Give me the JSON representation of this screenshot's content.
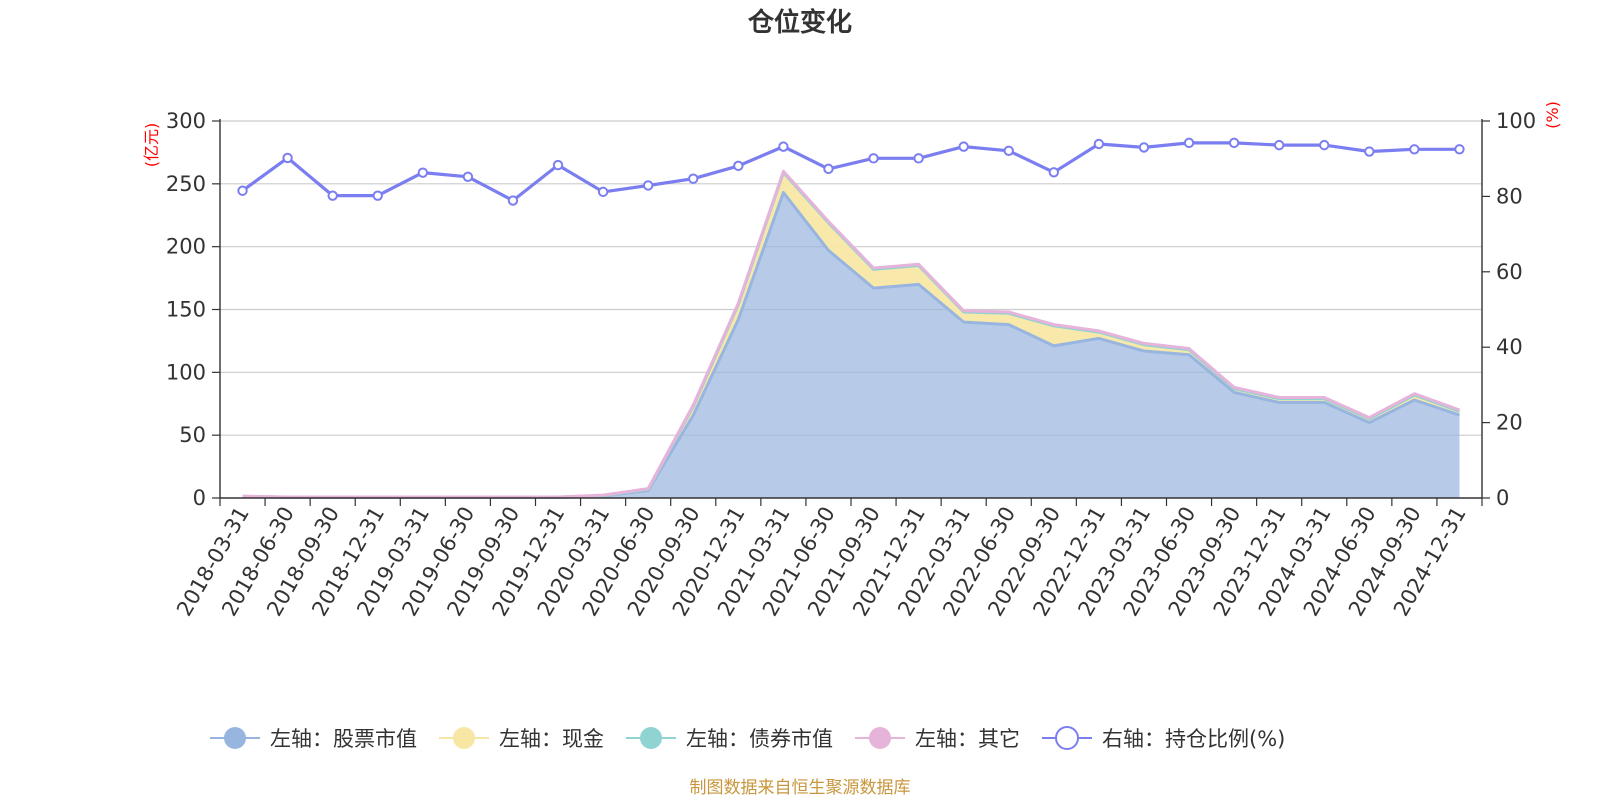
{
  "title": "仓位变化",
  "source_note": "制图数据来自恒生聚源数据库",
  "colors": {
    "stock": "#98b5e0",
    "stock_line": "#98b5e0",
    "cash": "#f8e7a4",
    "bond": "#8fd3d3",
    "other": "#e6b3da",
    "ratio": "#7b7ef0",
    "unit": "#ff0000",
    "source": "#c8963c"
  },
  "chart_data": {
    "type": "area",
    "title": "仓位变化",
    "x": [
      "2018-03-31",
      "2018-06-30",
      "2018-09-30",
      "2018-12-31",
      "2019-03-31",
      "2019-06-30",
      "2019-09-30",
      "2019-12-31",
      "2020-03-31",
      "2020-06-30",
      "2020-09-30",
      "2020-12-31",
      "2021-03-31",
      "2021-06-30",
      "2021-09-30",
      "2021-12-31",
      "2022-03-31",
      "2022-06-30",
      "2022-09-30",
      "2022-12-31",
      "2023-03-31",
      "2023-06-30",
      "2023-09-30",
      "2023-12-31",
      "2024-03-31",
      "2024-06-30",
      "2024-09-30",
      "2024-12-31"
    ],
    "left_axis": {
      "unit": "(亿元)",
      "ylim": [
        0,
        300
      ],
      "ticks": [
        0,
        50,
        100,
        150,
        200,
        250,
        300
      ]
    },
    "right_axis": {
      "unit": "(%)",
      "ylim": [
        0,
        100
      ],
      "ticks": [
        0,
        20,
        40,
        60,
        80,
        100
      ]
    },
    "grid": true,
    "legend_position": "bottom",
    "series": [
      {
        "name": "左轴：股票市值",
        "axis": "left",
        "kind": "stacked-area",
        "values": [
          1,
          0.5,
          0.5,
          0.5,
          0.5,
          0.5,
          0.5,
          0.5,
          1.5,
          6,
          66,
          142,
          243,
          197,
          167,
          170,
          140,
          138,
          121,
          127,
          117,
          114,
          84,
          76,
          76,
          60,
          78,
          66
        ]
      },
      {
        "name": "左轴：现金",
        "axis": "left",
        "kind": "stacked-area",
        "values": [
          0.3,
          0.2,
          0.2,
          0.2,
          0.2,
          0.2,
          0.2,
          0.2,
          0.5,
          1,
          7,
          12,
          16,
          22,
          15,
          15,
          8,
          9,
          16,
          5,
          5,
          4,
          3,
          3,
          3,
          3,
          4,
          3
        ]
      },
      {
        "name": "左轴：债券市值",
        "axis": "left",
        "kind": "stacked-area",
        "values": [
          0,
          0,
          0,
          0,
          0,
          0,
          0,
          0,
          0,
          0,
          0,
          0,
          0,
          0,
          0,
          0,
          0,
          0,
          0,
          0,
          0,
          0,
          0,
          0,
          0,
          0,
          0,
          0
        ]
      },
      {
        "name": "左轴：其它",
        "axis": "left",
        "kind": "stacked-area",
        "values": [
          0.2,
          0.1,
          0.1,
          0.1,
          0.1,
          0.1,
          0.1,
          0.1,
          0.3,
          0.5,
          1,
          1,
          1,
          1,
          1,
          1,
          1,
          1,
          1,
          1,
          1,
          1,
          1,
          1,
          1,
          1,
          1,
          1
        ]
      },
      {
        "name": "右轴：持仓比例(%)",
        "axis": "right",
        "kind": "line",
        "values": [
          81.5,
          90.2,
          80.2,
          80.2,
          86.3,
          85.2,
          78.9,
          88.3,
          81.2,
          82.9,
          84.7,
          88.1,
          93.2,
          87.3,
          90.1,
          90.1,
          93.2,
          92.1,
          86.4,
          93.9,
          93.0,
          94.2,
          94.2,
          93.6,
          93.6,
          91.9,
          92.5,
          92.5
        ]
      }
    ]
  }
}
